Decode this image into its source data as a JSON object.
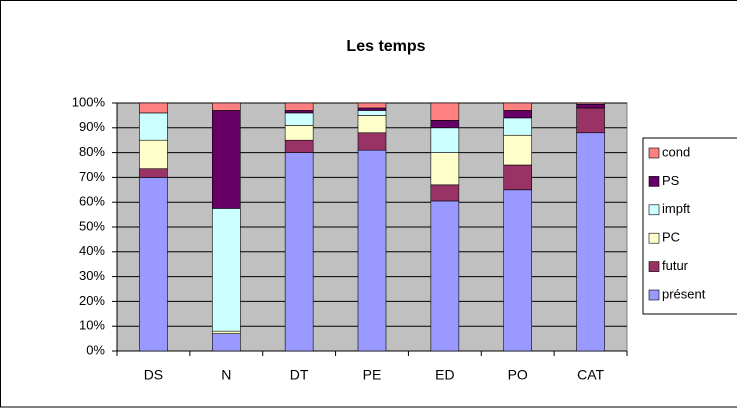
{
  "chart_data": {
    "type": "stacked_bar",
    "title": "Les temps",
    "categories": [
      "DS",
      "N",
      "DT",
      "PE",
      "ED",
      "PO",
      "CAT"
    ],
    "series": [
      {
        "name": "présent",
        "color": "#9999ff",
        "values": [
          70,
          7,
          80,
          81,
          60.5,
          65,
          88
        ]
      },
      {
        "name": "futur",
        "color": "#993366",
        "values": [
          3.5,
          0,
          5,
          7,
          6.5,
          10,
          10
        ]
      },
      {
        "name": "PC",
        "color": "#ffffcc",
        "values": [
          11.5,
          1,
          6,
          7,
          13,
          12,
          0
        ]
      },
      {
        "name": "impft",
        "color": "#ccffff",
        "values": [
          11,
          49.5,
          5,
          2,
          10,
          7,
          0
        ]
      },
      {
        "name": "PS",
        "color": "#660066",
        "values": [
          0,
          39.5,
          1,
          1,
          3,
          3,
          1.5
        ]
      },
      {
        "name": "cond",
        "color": "#ff8080",
        "values": [
          4,
          3,
          3,
          2,
          7,
          3,
          0.5
        ]
      }
    ],
    "ylim": [
      0,
      100
    ],
    "yticks": [
      {
        "value": 0,
        "label": "0%"
      },
      {
        "value": 10,
        "label": "10%"
      },
      {
        "value": 20,
        "label": "20%"
      },
      {
        "value": 30,
        "label": "30%"
      },
      {
        "value": 40,
        "label": "40%"
      },
      {
        "value": 50,
        "label": "50%"
      },
      {
        "value": 60,
        "label": "60%"
      },
      {
        "value": 70,
        "label": "70%"
      },
      {
        "value": 80,
        "label": "80%"
      },
      {
        "value": 90,
        "label": "90%"
      },
      {
        "value": 100,
        "label": "100%"
      }
    ],
    "grid": true,
    "legend": "right",
    "plot_background": "#c0c0c0"
  }
}
